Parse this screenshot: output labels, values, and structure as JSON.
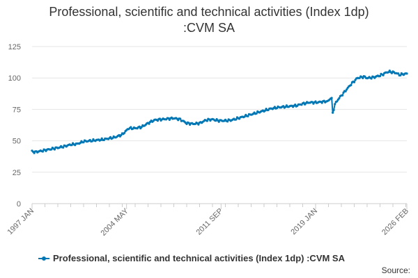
{
  "chart_data": {
    "type": "line",
    "title": "Professional, scientific and technical activities (Index 1dp) :CVM SA",
    "title_lines": [
      "Professional, scientific and technical activities (Index 1dp)",
      ":CVM SA"
    ],
    "xlabel": "",
    "ylabel": "",
    "ylim": [
      0,
      125
    ],
    "yticks": [
      "0",
      "25",
      "50",
      "75",
      "100",
      "125"
    ],
    "xtick_labels": [
      "1997 JAN",
      "2004 MAY",
      "2011 SEP",
      "2019 JAN",
      "2026 FEB"
    ],
    "xtick_values": [
      1997.0,
      2004.333,
      2011.667,
      2019.0,
      2026.083
    ],
    "xlim": [
      1997.0,
      2026.083
    ],
    "grid": true,
    "legend": "bottom",
    "series": [
      {
        "name": "Professional, scientific and technical activities (Index 1dp) :CVM SA",
        "color": "#0077b5",
        "x": [
          1997.0,
          1997.25,
          1997.5,
          1997.75,
          1998.0,
          1998.25,
          1998.5,
          1998.75,
          1999.0,
          1999.5,
          2000.0,
          2000.5,
          2001.0,
          2001.5,
          2002.0,
          2002.5,
          2003.0,
          2003.5,
          2004.0,
          2004.5,
          2005.0,
          2005.5,
          2006.0,
          2006.5,
          2007.0,
          2007.5,
          2008.0,
          2008.5,
          2009.0,
          2009.5,
          2010.0,
          2010.5,
          2011.0,
          2011.5,
          2012.0,
          2012.5,
          2013.0,
          2013.5,
          2014.0,
          2014.5,
          2015.0,
          2015.5,
          2016.0,
          2016.5,
          2017.0,
          2017.5,
          2018.0,
          2018.5,
          2019.0,
          2019.5,
          2019.9,
          2020.0,
          2020.17,
          2020.25,
          2020.33,
          2020.5,
          2020.75,
          2021.0,
          2021.25,
          2021.5,
          2021.75,
          2022.0,
          2022.25,
          2022.5,
          2022.75,
          2023.0,
          2023.5,
          2024.0,
          2024.25,
          2024.5,
          2024.75,
          2025.0,
          2025.25,
          2025.5,
          2025.75,
          2026.083
        ],
        "values": [
          41.5,
          41.0,
          41.5,
          42.0,
          42.5,
          43.0,
          43.5,
          44.0,
          44.5,
          45.5,
          47.0,
          47.5,
          49.5,
          50.0,
          50.5,
          51.0,
          52.0,
          53.0,
          55.0,
          60.0,
          60.0,
          61.0,
          64.0,
          66.5,
          67.0,
          67.5,
          68.0,
          67.0,
          64.0,
          63.5,
          64.0,
          66.5,
          67.0,
          66.0,
          66.0,
          66.5,
          68.0,
          69.5,
          71.0,
          72.5,
          74.0,
          75.5,
          76.5,
          77.0,
          77.5,
          78.0,
          79.5,
          80.5,
          80.5,
          81.0,
          81.5,
          82.0,
          84.0,
          83.5,
          72.0,
          79.0,
          83.0,
          86.0,
          89.0,
          92.0,
          95.0,
          97.5,
          100.0,
          100.5,
          101.0,
          100.0,
          100.5,
          102.0,
          103.0,
          104.5,
          105.0,
          104.5,
          104.0,
          102.5,
          103.0,
          103.5
        ]
      }
    ]
  },
  "source_label": "Source:"
}
